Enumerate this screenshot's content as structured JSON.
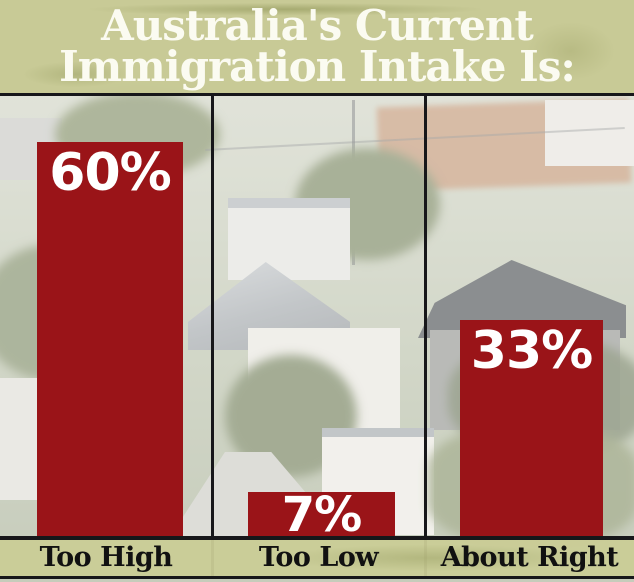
{
  "title": {
    "line1": "Australia's Current",
    "line2": "Immigration Intake Is:"
  },
  "chart_data": {
    "type": "bar",
    "title": "Australia's Current Immigration Intake Is:",
    "categories": [
      "Too High",
      "Too Low",
      "About Right"
    ],
    "values": [
      60,
      7,
      33
    ],
    "value_labels": [
      "60%",
      "7%",
      "33%"
    ],
    "ylim": [
      0,
      60
    ],
    "grid": false,
    "legend": false,
    "bar_color": "#9a1418",
    "value_label_color": "#ffffff",
    "category_label_color": "#111111",
    "background": "washed-out photo of suburban rooftops with olive-green title and footer bands"
  },
  "colors": {
    "bar_red": "#9a1418",
    "band_olive": "#c6c892",
    "frame_black": "#17171a",
    "title_text": "#fbfbf1"
  }
}
